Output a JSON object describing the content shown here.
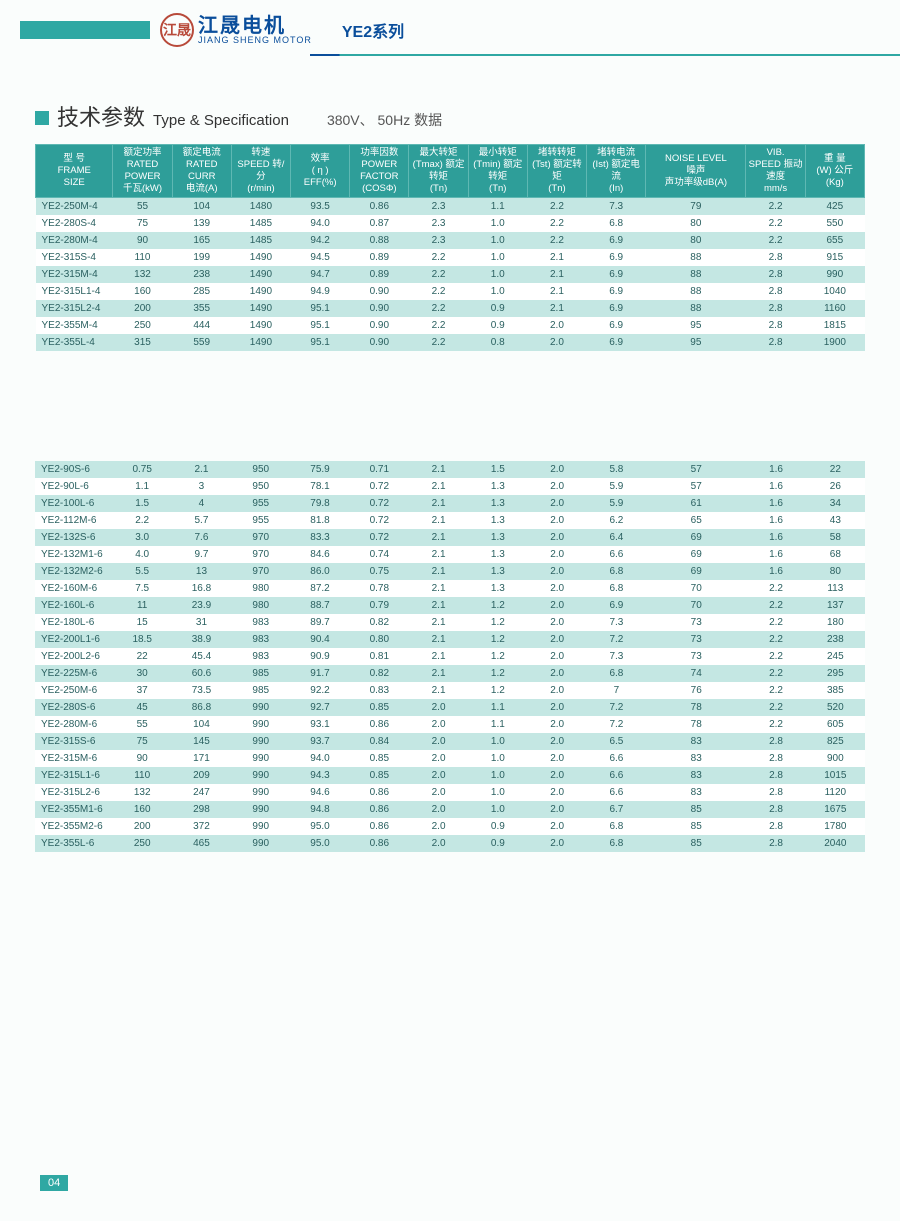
{
  "header": {
    "logo_cn": "江晟电机",
    "logo_en": "JIANG SHENG MOTOR",
    "logo_mark": "江晟",
    "series": "YE2系列"
  },
  "section": {
    "title_cn": "技术参数",
    "title_en": "Type & Specification",
    "subtitle": "380V、 50Hz 数据"
  },
  "columns": [
    {
      "l1": "型 号",
      "l2": "FRAME",
      "l3": "SIZE"
    },
    {
      "l1": "额定功率",
      "l2": "RATED POWER",
      "l3": "千瓦(kW)"
    },
    {
      "l1": "额定电流",
      "l2": "RATED CURR",
      "l3": "电流(A)"
    },
    {
      "l1": "转速",
      "l2": "SPEED 转/分",
      "l3": "(r/min)"
    },
    {
      "l1": "效率",
      "l2": "( η )",
      "l3": "EFF(%)"
    },
    {
      "l1": "功率因数",
      "l2": "POWER FACTOR",
      "l3": "(COSΦ)"
    },
    {
      "l1": "最大转矩",
      "l2": "(Tmax) 额定转矩",
      "l3": "(Tn)"
    },
    {
      "l1": "最小转矩",
      "l2": "(Tmin) 额定转矩",
      "l3": "(Tn)"
    },
    {
      "l1": "堵转转矩",
      "l2": "(Tst) 额定转矩",
      "l3": "(Tn)"
    },
    {
      "l1": "堵转电流",
      "l2": "(Ist) 额定电流",
      "l3": "(In)"
    },
    {
      "l1": "NOISE LEVEL",
      "l2": "噪声",
      "l3": "声功率级dB(A)"
    },
    {
      "l1": "VIB.",
      "l2": "SPEED 振动速度",
      "l3": "mm/s"
    },
    {
      "l1": "重 量",
      "l2": "(W) 公斤",
      "l3": "(Kg)"
    }
  ],
  "table1": [
    [
      "YE2-250M-4",
      "55",
      "104",
      "1480",
      "93.5",
      "0.86",
      "2.3",
      "1.1",
      "2.2",
      "7.3",
      "79",
      "2.2",
      "425"
    ],
    [
      "YE2-280S-4",
      "75",
      "139",
      "1485",
      "94.0",
      "0.87",
      "2.3",
      "1.0",
      "2.2",
      "6.8",
      "80",
      "2.2",
      "550"
    ],
    [
      "YE2-280M-4",
      "90",
      "165",
      "1485",
      "94.2",
      "0.88",
      "2.3",
      "1.0",
      "2.2",
      "6.9",
      "80",
      "2.2",
      "655"
    ],
    [
      "YE2-315S-4",
      "110",
      "199",
      "1490",
      "94.5",
      "0.89",
      "2.2",
      "1.0",
      "2.1",
      "6.9",
      "88",
      "2.8",
      "915"
    ],
    [
      "YE2-315M-4",
      "132",
      "238",
      "1490",
      "94.7",
      "0.89",
      "2.2",
      "1.0",
      "2.1",
      "6.9",
      "88",
      "2.8",
      "990"
    ],
    [
      "YE2-315L1-4",
      "160",
      "285",
      "1490",
      "94.9",
      "0.90",
      "2.2",
      "1.0",
      "2.1",
      "6.9",
      "88",
      "2.8",
      "1040"
    ],
    [
      "YE2-315L2-4",
      "200",
      "355",
      "1490",
      "95.1",
      "0.90",
      "2.2",
      "0.9",
      "2.1",
      "6.9",
      "88",
      "2.8",
      "1160"
    ],
    [
      "YE2-355M-4",
      "250",
      "444",
      "1490",
      "95.1",
      "0.90",
      "2.2",
      "0.9",
      "2.0",
      "6.9",
      "95",
      "2.8",
      "1815"
    ],
    [
      "YE2-355L-4",
      "315",
      "559",
      "1490",
      "95.1",
      "0.90",
      "2.2",
      "0.8",
      "2.0",
      "6.9",
      "95",
      "2.8",
      "1900"
    ]
  ],
  "table2": [
    [
      "YE2-90S-6",
      "0.75",
      "2.1",
      "950",
      "75.9",
      "0.71",
      "2.1",
      "1.5",
      "2.0",
      "5.8",
      "57",
      "1.6",
      "22"
    ],
    [
      "YE2-90L-6",
      "1.1",
      "3",
      "950",
      "78.1",
      "0.72",
      "2.1",
      "1.3",
      "2.0",
      "5.9",
      "57",
      "1.6",
      "26"
    ],
    [
      "YE2-100L-6",
      "1.5",
      "4",
      "955",
      "79.8",
      "0.72",
      "2.1",
      "1.3",
      "2.0",
      "5.9",
      "61",
      "1.6",
      "34"
    ],
    [
      "YE2-112M-6",
      "2.2",
      "5.7",
      "955",
      "81.8",
      "0.72",
      "2.1",
      "1.3",
      "2.0",
      "6.2",
      "65",
      "1.6",
      "43"
    ],
    [
      "YE2-132S-6",
      "3.0",
      "7.6",
      "970",
      "83.3",
      "0.72",
      "2.1",
      "1.3",
      "2.0",
      "6.4",
      "69",
      "1.6",
      "58"
    ],
    [
      "YE2-132M1-6",
      "4.0",
      "9.7",
      "970",
      "84.6",
      "0.74",
      "2.1",
      "1.3",
      "2.0",
      "6.6",
      "69",
      "1.6",
      "68"
    ],
    [
      "YE2-132M2-6",
      "5.5",
      "13",
      "970",
      "86.0",
      "0.75",
      "2.1",
      "1.3",
      "2.0",
      "6.8",
      "69",
      "1.6",
      "80"
    ],
    [
      "YE2-160M-6",
      "7.5",
      "16.8",
      "980",
      "87.2",
      "0.78",
      "2.1",
      "1.3",
      "2.0",
      "6.8",
      "70",
      "2.2",
      "113"
    ],
    [
      "YE2-160L-6",
      "11",
      "23.9",
      "980",
      "88.7",
      "0.79",
      "2.1",
      "1.2",
      "2.0",
      "6.9",
      "70",
      "2.2",
      "137"
    ],
    [
      "YE2-180L-6",
      "15",
      "31",
      "983",
      "89.7",
      "0.82",
      "2.1",
      "1.2",
      "2.0",
      "7.3",
      "73",
      "2.2",
      "180"
    ],
    [
      "YE2-200L1-6",
      "18.5",
      "38.9",
      "983",
      "90.4",
      "0.80",
      "2.1",
      "1.2",
      "2.0",
      "7.2",
      "73",
      "2.2",
      "238"
    ],
    [
      "YE2-200L2-6",
      "22",
      "45.4",
      "983",
      "90.9",
      "0.81",
      "2.1",
      "1.2",
      "2.0",
      "7.3",
      "73",
      "2.2",
      "245"
    ],
    [
      "YE2-225M-6",
      "30",
      "60.6",
      "985",
      "91.7",
      "0.82",
      "2.1",
      "1.2",
      "2.0",
      "6.8",
      "74",
      "2.2",
      "295"
    ],
    [
      "YE2-250M-6",
      "37",
      "73.5",
      "985",
      "92.2",
      "0.83",
      "2.1",
      "1.2",
      "2.0",
      "7",
      "76",
      "2.2",
      "385"
    ],
    [
      "YE2-280S-6",
      "45",
      "86.8",
      "990",
      "92.7",
      "0.85",
      "2.0",
      "1.1",
      "2.0",
      "7.2",
      "78",
      "2.2",
      "520"
    ],
    [
      "YE2-280M-6",
      "55",
      "104",
      "990",
      "93.1",
      "0.86",
      "2.0",
      "1.1",
      "2.0",
      "7.2",
      "78",
      "2.2",
      "605"
    ],
    [
      "YE2-315S-6",
      "75",
      "145",
      "990",
      "93.7",
      "0.84",
      "2.0",
      "1.0",
      "2.0",
      "6.5",
      "83",
      "2.8",
      "825"
    ],
    [
      "YE2-315M-6",
      "90",
      "171",
      "990",
      "94.0",
      "0.85",
      "2.0",
      "1.0",
      "2.0",
      "6.6",
      "83",
      "2.8",
      "900"
    ],
    [
      "YE2-315L1-6",
      "110",
      "209",
      "990",
      "94.3",
      "0.85",
      "2.0",
      "1.0",
      "2.0",
      "6.6",
      "83",
      "2.8",
      "1015"
    ],
    [
      "YE2-315L2-6",
      "132",
      "247",
      "990",
      "94.6",
      "0.86",
      "2.0",
      "1.0",
      "2.0",
      "6.6",
      "83",
      "2.8",
      "1120"
    ],
    [
      "YE2-355M1-6",
      "160",
      "298",
      "990",
      "94.8",
      "0.86",
      "2.0",
      "1.0",
      "2.0",
      "6.7",
      "85",
      "2.8",
      "1675"
    ],
    [
      "YE2-355M2-6",
      "200",
      "372",
      "990",
      "95.0",
      "0.86",
      "2.0",
      "0.9",
      "2.0",
      "6.8",
      "85",
      "2.8",
      "1780"
    ],
    [
      "YE2-355L-6",
      "250",
      "465",
      "990",
      "95.0",
      "0.86",
      "2.0",
      "0.9",
      "2.0",
      "6.8",
      "85",
      "2.8",
      "2040"
    ]
  ],
  "page_number": "04"
}
